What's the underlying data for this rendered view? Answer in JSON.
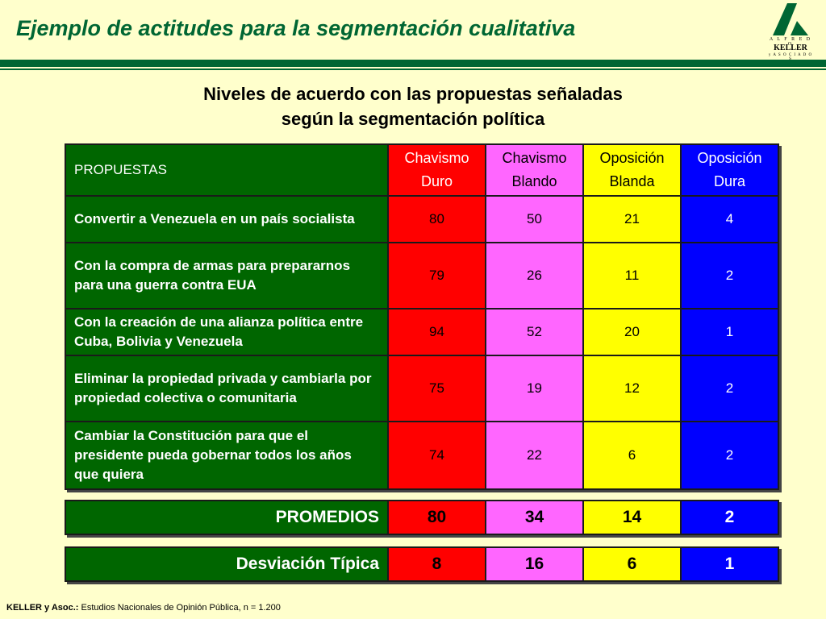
{
  "header": {
    "title": "Ejemplo de actitudes para la segmentación cualitativa",
    "logo": {
      "top": "A L F R E D O",
      "name": "KELLER",
      "bottom": "y  A S O C I A D O S"
    }
  },
  "subtitle": {
    "line1": "Niveles de acuerdo con las propuestas señaladas",
    "line2": "según la segmentación política"
  },
  "table": {
    "header": {
      "proposals": "PROPUESTAS",
      "segments": [
        {
          "line1": "Chavismo",
          "line2": "Duro",
          "color": "#ff0000"
        },
        {
          "line1": "Chavismo",
          "line2": "Blando",
          "color": "#ff66ff"
        },
        {
          "line1": "Oposición",
          "line2": "Blanda",
          "color": "#ffff00"
        },
        {
          "line1": "Oposición",
          "line2": "Dura",
          "color": "#0000ff"
        }
      ]
    },
    "rows": [
      {
        "proposal": "Convertir a Venezuela en un país socialista",
        "values": [
          "80",
          "50",
          "21",
          "4"
        ]
      },
      {
        "proposal": "Con la compra de armas para prepararnos para una guerra contra EUA",
        "values": [
          "79",
          "26",
          "11",
          "2"
        ]
      },
      {
        "proposal": "Con la creación de una alianza política entre Cuba, Bolivia y Venezuela",
        "values": [
          "94",
          "52",
          "20",
          "1"
        ]
      },
      {
        "proposal": "Eliminar la propiedad privada y cambiarla por propiedad colectiva o comunitaria",
        "values": [
          "75",
          "19",
          "12",
          "2"
        ]
      },
      {
        "proposal": "Cambiar la Constitución para que el presidente pueda gobernar todos los años que quiera",
        "values": [
          "74",
          "22",
          "6",
          "2"
        ]
      }
    ]
  },
  "averages": {
    "label": "PROMEDIOS",
    "values": [
      "80",
      "34",
      "14",
      "2"
    ]
  },
  "std_dev": {
    "label": "Desviación Típica",
    "values": [
      "8",
      "16",
      "6",
      "1"
    ]
  },
  "footer": {
    "source_label": "KELLER y Asoc.:",
    "source_text": "Estudios Nacionales de Opinión Pública, n = 1.200"
  }
}
